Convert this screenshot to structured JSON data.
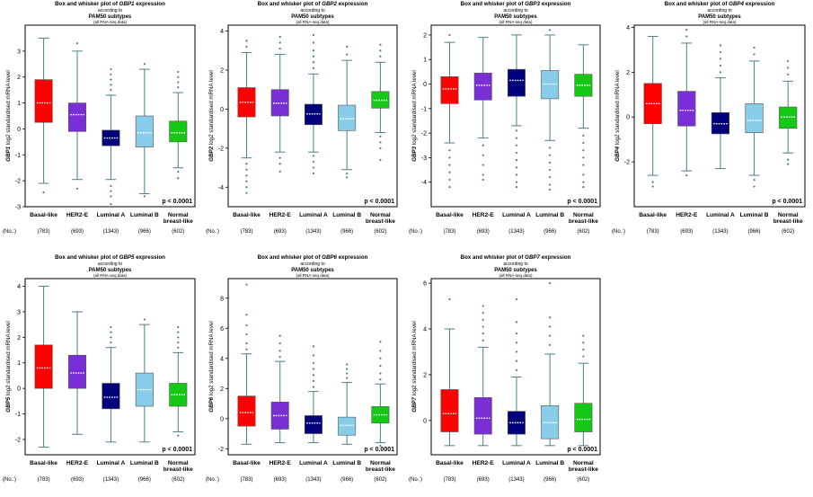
{
  "colors": {
    "basal": "#ff0000",
    "her2": "#7a2fd6",
    "luminal_a": "#00007a",
    "luminal_b": "#87cdea",
    "normal": "#16c816",
    "whisker": "#4a7f86",
    "median": "#ffffff"
  },
  "chart_data": [
    {
      "type": "box",
      "gene": "GBP1",
      "title": "Box and whisker plot of GBP1 expression",
      "subtitle1": "according to",
      "subtitle2": "PAM50 subtypes",
      "subtitle3": "(all RNA-seq data)",
      "ylabel_gene": "GBP1",
      "ylabel": " log2 standardised mRNA level",
      "ylim": [
        -3,
        4
      ],
      "yticks": [
        -3,
        -2,
        -1,
        0,
        1,
        2,
        3
      ],
      "pvalue": "p < 0.0001",
      "no_label": "(No.:)",
      "categories": [
        "Basal-like",
        "HER2-E",
        "Luminal A",
        "Luminal B",
        "Normal breast-like"
      ],
      "counts": [
        "(783)",
        "(693)",
        "(1343)",
        "(966)",
        "(602)"
      ],
      "boxes": [
        {
          "q1": 0.25,
          "median": 1.0,
          "q3": 1.9,
          "whisker_low": -2.1,
          "whisker_high": 3.5,
          "outliers": [
            -2.45
          ]
        },
        {
          "q1": -0.1,
          "median": 0.55,
          "q3": 1.0,
          "whisker_low": -1.95,
          "whisker_high": 3.0,
          "outliers": [
            -2.3,
            3.3
          ]
        },
        {
          "q1": -0.65,
          "median": -0.35,
          "q3": -0.05,
          "whisker_low": -1.95,
          "whisker_high": 1.3,
          "outliers": [
            -2.2,
            -2.4,
            -2.6,
            -2.9,
            1.5,
            1.7,
            1.9,
            2.1,
            2.3
          ]
        },
        {
          "q1": -0.7,
          "median": -0.15,
          "q3": 0.5,
          "whisker_low": -2.5,
          "whisker_high": 2.3,
          "outliers": [
            -2.6,
            2.5
          ]
        },
        {
          "q1": -0.5,
          "median": -0.15,
          "q3": 0.3,
          "whisker_low": -1.5,
          "whisker_high": 1.4,
          "outliers": [
            -1.65,
            -1.9,
            1.6,
            1.8,
            2.0,
            2.2
          ]
        }
      ]
    },
    {
      "type": "box",
      "gene": "GBP2",
      "title": "Box and whisker plot of GBP2 expression",
      "subtitle1": "according to",
      "subtitle2": "PAM50 subtypes",
      "subtitle3": "(all RNA-seq data)",
      "ylabel_gene": "GBP2",
      "ylabel": " log2 standardised mRNA level",
      "ylim": [
        -5,
        4.3
      ],
      "yticks": [
        -4,
        -2,
        0,
        2,
        4
      ],
      "pvalue": "p < 0.0001",
      "no_label": "(No.:)",
      "categories": [
        "Basal-like",
        "HER2-E",
        "Luminal A",
        "Luminal B",
        "Normal breast-like"
      ],
      "counts": [
        "(783)",
        "(693)",
        "(1343)",
        "(966)",
        "(602)"
      ],
      "boxes": [
        {
          "q1": -0.4,
          "median": 0.35,
          "q3": 1.1,
          "whisker_low": -2.5,
          "whisker_high": 2.9,
          "outliers": [
            -2.8,
            -3.1,
            -3.4,
            -3.7,
            -4.0,
            -4.3,
            3.2,
            3.5
          ]
        },
        {
          "q1": -0.35,
          "median": 0.3,
          "q3": 1.0,
          "whisker_low": -2.2,
          "whisker_high": 2.8,
          "outliers": [
            -2.5,
            -2.8,
            -3.2,
            3.1,
            3.4,
            3.7
          ]
        },
        {
          "q1": -0.8,
          "median": -0.25,
          "q3": 0.25,
          "whisker_low": -2.2,
          "whisker_high": 1.8,
          "outliers": [
            -2.4,
            -2.7,
            -3.0,
            -3.3,
            2.1,
            2.4,
            2.7,
            3.0,
            3.4,
            3.8
          ]
        },
        {
          "q1": -1.1,
          "median": -0.5,
          "q3": 0.2,
          "whisker_low": -3.1,
          "whisker_high": 2.5,
          "outliers": [
            -3.3,
            -3.5,
            2.8,
            3.2
          ]
        },
        {
          "q1": 0.05,
          "median": 0.45,
          "q3": 0.9,
          "whisker_low": -1.2,
          "whisker_high": 2.4,
          "outliers": [
            -1.4,
            -1.7,
            -2.0,
            -2.6,
            2.7,
            3.0,
            3.3
          ]
        }
      ]
    },
    {
      "type": "box",
      "gene": "GBP3",
      "title": "Box and whisker plot of GBP3 expression",
      "subtitle1": "according to",
      "subtitle2": "PAM50 subtypes",
      "subtitle3": "(all RNA-seq data)",
      "ylabel_gene": "GBP3",
      "ylabel": " log2 standardised mRNA level",
      "ylim": [
        -5,
        2.4
      ],
      "yticks": [
        -4,
        -3,
        -2,
        -1,
        0,
        1,
        2
      ],
      "pvalue": "p < 0.0001",
      "no_label": "(No.:)",
      "categories": [
        "Basal-like",
        "HER2-E",
        "Luminal A",
        "Luminal B",
        "Normal breast-like"
      ],
      "counts": [
        "(783)",
        "(693)",
        "(1343)",
        "(966)",
        "(602)"
      ],
      "boxes": [
        {
          "q1": -0.8,
          "median": -0.2,
          "q3": 0.3,
          "whisker_low": -2.4,
          "whisker_high": 1.7,
          "outliers": [
            -2.7,
            -3.0,
            -3.3,
            -3.6,
            -3.9,
            -4.2,
            2.0
          ]
        },
        {
          "q1": -0.65,
          "median": -0.05,
          "q3": 0.45,
          "whisker_low": -2.2,
          "whisker_high": 1.9,
          "outliers": [
            -2.5,
            -2.9,
            -3.3,
            -3.7,
            -3.9
          ]
        },
        {
          "q1": -0.5,
          "median": 0.15,
          "q3": 0.6,
          "whisker_low": -1.7,
          "whisker_high": 2.0,
          "outliers": [
            -1.9,
            -2.2,
            -2.5,
            -2.8,
            -3.1,
            -3.4,
            -3.7,
            -4.0,
            -4.2
          ]
        },
        {
          "q1": -0.6,
          "median": 0.0,
          "q3": 0.55,
          "whisker_low": -2.3,
          "whisker_high": 2.0,
          "outliers": [
            -2.6,
            -2.9,
            -3.2,
            -3.5,
            -3.8,
            -4.1,
            -4.3,
            2.2
          ]
        },
        {
          "q1": -0.5,
          "median": -0.05,
          "q3": 0.4,
          "whisker_low": -1.8,
          "whisker_high": 1.6,
          "outliers": [
            -2.1,
            -2.4,
            -2.7,
            -3.0,
            -3.3,
            -3.7,
            -4.0,
            -4.2
          ]
        }
      ]
    },
    {
      "type": "box",
      "gene": "GBP4",
      "title": "Box and whisker plot of GBP4 expression",
      "subtitle1": "according to",
      "subtitle2": "PAM50 subtypes",
      "subtitle3": "(all RNA-seq data)",
      "ylabel_gene": "GBP4",
      "ylabel": " log2 standardised mRNA level",
      "ylim": [
        -4,
        4.1
      ],
      "yticks": [
        -2,
        0,
        2,
        4
      ],
      "pvalue": "p < 0.0001",
      "no_label": "(No.:)",
      "categories": [
        "Basal-like",
        "HER2-E",
        "Luminal A",
        "Luminal B",
        "Normal breast-like"
      ],
      "counts": [
        "(783)",
        "(693)",
        "(1343)",
        "(966)",
        "(602)"
      ],
      "boxes": [
        {
          "q1": -0.3,
          "median": 0.6,
          "q3": 1.5,
          "whisker_low": -2.6,
          "whisker_high": 3.6,
          "outliers": [
            -2.9,
            -3.1
          ]
        },
        {
          "q1": -0.4,
          "median": 0.3,
          "q3": 1.15,
          "whisker_low": -2.4,
          "whisker_high": 3.3,
          "outliers": [
            -2.6,
            3.6,
            3.9
          ]
        },
        {
          "q1": -0.75,
          "median": -0.3,
          "q3": 0.2,
          "whisker_low": -2.3,
          "whisker_high": 1.75,
          "outliers": [
            2.0,
            2.3,
            2.6,
            2.9,
            3.2
          ]
        },
        {
          "q1": -0.7,
          "median": -0.15,
          "q3": 0.6,
          "whisker_low": -2.6,
          "whisker_high": 2.5,
          "outliers": [
            -2.8,
            -3.1,
            2.8,
            3.1
          ]
        },
        {
          "q1": -0.5,
          "median": 0.0,
          "q3": 0.45,
          "whisker_low": -1.6,
          "whisker_high": 1.6,
          "outliers": [
            -1.9,
            -2.1,
            1.9,
            2.2,
            2.5
          ]
        }
      ]
    },
    {
      "type": "box",
      "gene": "GBP5",
      "title": "Box and whisker plot of GBP5 expression",
      "subtitle1": "according to",
      "subtitle2": "PAM50 subtypes",
      "subtitle3": "(all RNA-seq data)",
      "ylabel_gene": "GBP5",
      "ylabel": " log2 standardised mRNA level",
      "ylim": [
        -2.6,
        4.3
      ],
      "yticks": [
        -2,
        -1,
        0,
        1,
        2,
        3,
        4
      ],
      "pvalue": "p < 0.0001",
      "no_label": "(No.:)",
      "categories": [
        "Basal-like",
        "HER2-E",
        "Luminal A",
        "Luminal B",
        "Normal breast-like"
      ],
      "counts": [
        "(783)",
        "(693)",
        "(1343)",
        "(966)",
        "(602)"
      ],
      "boxes": [
        {
          "q1": 0.0,
          "median": 0.8,
          "q3": 1.7,
          "whisker_low": -2.3,
          "whisker_high": 4.0,
          "outliers": []
        },
        {
          "q1": 0.0,
          "median": 0.6,
          "q3": 1.3,
          "whisker_low": -1.8,
          "whisker_high": 3.0,
          "outliers": []
        },
        {
          "q1": -0.8,
          "median": -0.35,
          "q3": 0.2,
          "whisker_low": -2.1,
          "whisker_high": 1.6,
          "outliers": [
            1.8,
            2.0,
            2.2,
            2.4
          ]
        },
        {
          "q1": -0.7,
          "median": -0.05,
          "q3": 0.6,
          "whisker_low": -2.1,
          "whisker_high": 2.5,
          "outliers": [
            2.7
          ]
        },
        {
          "q1": -0.7,
          "median": -0.25,
          "q3": 0.2,
          "whisker_low": -1.7,
          "whisker_high": 1.4,
          "outliers": [
            -1.85,
            1.6,
            1.8,
            2.0,
            2.2,
            2.4
          ]
        }
      ]
    },
    {
      "type": "box",
      "gene": "GBP6",
      "title": "Box and whisker plot of GBP6 expression",
      "subtitle1": "according to",
      "subtitle2": "PAM50 subtypes",
      "subtitle3": "(all RNA-seq data)",
      "ylabel_gene": "GBP6",
      "ylabel": " log2 standardised mRNA level",
      "ylim": [
        -2.4,
        9.3
      ],
      "yticks": [
        -2,
        0,
        2,
        4,
        6,
        8
      ],
      "pvalue": "p < 0.0001",
      "no_label": "(No.:)",
      "categories": [
        "Basal-like",
        "HER2-E",
        "Luminal A",
        "Luminal B",
        "Normal breast-like"
      ],
      "counts": [
        "(783)",
        "(693)",
        "(1343)",
        "(966)",
        "(602)"
      ],
      "boxes": [
        {
          "q1": -0.5,
          "median": 0.4,
          "q3": 1.5,
          "whisker_low": -1.7,
          "whisker_high": 4.3,
          "outliers": [
            4.6,
            5.0,
            5.6,
            6.2,
            6.9,
            8.9
          ]
        },
        {
          "q1": -0.7,
          "median": 0.2,
          "q3": 1.1,
          "whisker_low": -1.6,
          "whisker_high": 3.8,
          "outliers": [
            4.1,
            4.5,
            5.0,
            5.5
          ]
        },
        {
          "q1": -1.0,
          "median": -0.3,
          "q3": 0.2,
          "whisker_low": -1.6,
          "whisker_high": 1.8,
          "outliers": [
            2.1,
            2.5,
            2.9,
            3.3,
            3.7,
            4.2,
            4.8
          ]
        },
        {
          "q1": -1.1,
          "median": -0.45,
          "q3": 0.1,
          "whisker_low": -1.7,
          "whisker_high": 2.4,
          "outliers": [
            2.7,
            3.0,
            3.3,
            3.6
          ]
        },
        {
          "q1": -0.3,
          "median": 0.25,
          "q3": 0.8,
          "whisker_low": -1.6,
          "whisker_high": 2.3,
          "outliers": [
            -1.8,
            2.6,
            3.0,
            3.5,
            4.0,
            4.5,
            5.1
          ]
        }
      ]
    },
    {
      "type": "box",
      "gene": "GBP7",
      "title": "Box and whisker plot of GBP7 expression",
      "subtitle1": "according to",
      "subtitle2": "PAM50 subtypes",
      "subtitle3": "(all RNA-seq data)",
      "ylabel_gene": "GBP7",
      "ylabel": " log2 standardised mRNA level",
      "ylim": [
        -1.5,
        6.2
      ],
      "yticks": [
        0,
        2,
        4,
        6
      ],
      "pvalue": "p < 0.0001",
      "no_label": "(No.:)",
      "categories": [
        "Basal-like",
        "HER2-E",
        "Luminal A",
        "Luminal B",
        "Normal breast-like"
      ],
      "counts": [
        "(783)",
        "(693)",
        "(1343)",
        "(966)",
        "(602)"
      ],
      "boxes": [
        {
          "q1": -0.5,
          "median": 0.3,
          "q3": 1.35,
          "whisker_low": -1.1,
          "whisker_high": 4.0,
          "outliers": [
            5.3
          ]
        },
        {
          "q1": -0.6,
          "median": 0.1,
          "q3": 1.0,
          "whisker_low": -1.1,
          "whisker_high": 3.2,
          "outliers": [
            3.5,
            3.8,
            4.1,
            4.4,
            4.7,
            5.0
          ]
        },
        {
          "q1": -0.6,
          "median": -0.1,
          "q3": 0.4,
          "whisker_low": -1.1,
          "whisker_high": 1.9,
          "outliers": [
            2.2,
            2.6,
            3.0,
            3.4,
            3.8,
            4.3,
            5.3
          ]
        },
        {
          "q1": -0.8,
          "median": -0.1,
          "q3": 0.65,
          "whisker_low": -1.1,
          "whisker_high": 2.9,
          "outliers": [
            3.3,
            3.7,
            4.1,
            4.5,
            6.0
          ]
        },
        {
          "q1": -0.5,
          "median": 0.05,
          "q3": 0.75,
          "whisker_low": -1.1,
          "whisker_high": 2.5,
          "outliers": [
            2.8,
            3.1,
            3.4,
            3.7
          ]
        }
      ]
    }
  ]
}
